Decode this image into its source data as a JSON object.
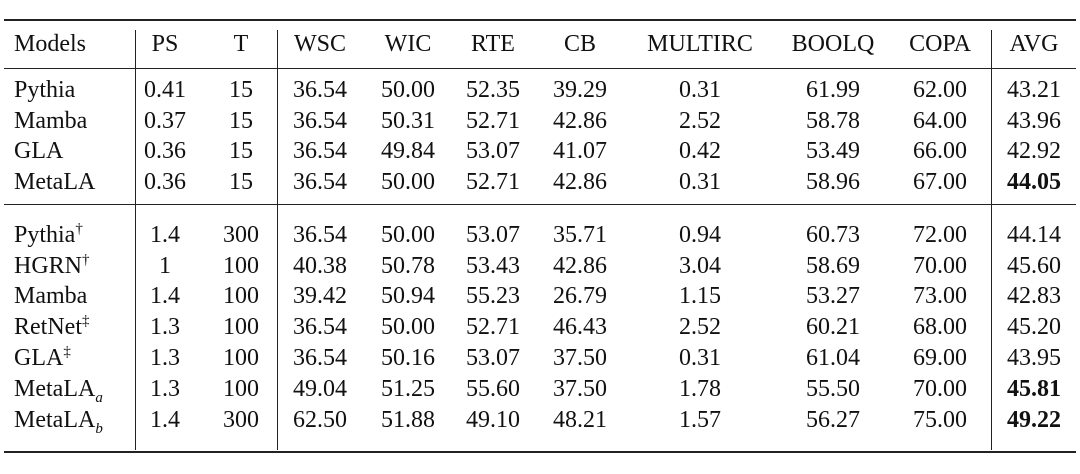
{
  "table": {
    "header": [
      "Models",
      "PS",
      "T",
      "WSC",
      "WIC",
      "RTE",
      "CB",
      "MULTIRC",
      "BOOLQ",
      "COPA",
      "AVG"
    ],
    "groups": [
      [
        {
          "model": "Pythia",
          "cells": [
            "0.41",
            "15",
            "36.54",
            "50.00",
            "52.35",
            "39.29",
            "0.31",
            "61.99",
            "62.00",
            "43.21"
          ]
        },
        {
          "model": "Mamba",
          "cells": [
            "0.37",
            "15",
            "36.54",
            "50.31",
            "52.71",
            "42.86",
            "2.52",
            "58.78",
            "64.00",
            "43.96"
          ]
        },
        {
          "model": "GLA",
          "cells": [
            "0.36",
            "15",
            "36.54",
            "49.84",
            "53.07",
            "41.07",
            "0.42",
            "53.49",
            "66.00",
            "42.92"
          ]
        },
        {
          "model": "MetaLA",
          "cells": [
            "0.36",
            "15",
            "36.54",
            "50.00",
            "52.71",
            "42.86",
            "0.31",
            "58.96",
            "67.00",
            "44.05"
          ],
          "bold_avg": true
        }
      ],
      [
        {
          "model": "Pythia",
          "sup": "†",
          "cells": [
            "1.4",
            "300",
            "36.54",
            "50.00",
            "53.07",
            "35.71",
            "0.94",
            "60.73",
            "72.00",
            "44.14"
          ]
        },
        {
          "model": "HGRN",
          "sup": "†",
          "cells": [
            "1",
            "100",
            "40.38",
            "50.78",
            "53.43",
            "42.86",
            "3.04",
            "58.69",
            "70.00",
            "45.60"
          ]
        },
        {
          "model": "Mamba",
          "cells": [
            "1.4",
            "100",
            "39.42",
            "50.94",
            "55.23",
            "26.79",
            "1.15",
            "53.27",
            "73.00",
            "42.83"
          ]
        },
        {
          "model": "RetNet",
          "sup": "‡",
          "cells": [
            "1.3",
            "100",
            "36.54",
            "50.00",
            "52.71",
            "46.43",
            "2.52",
            "60.21",
            "68.00",
            "45.20"
          ]
        },
        {
          "model": "GLA",
          "sup": "‡",
          "cells": [
            "1.3",
            "100",
            "36.54",
            "50.16",
            "53.07",
            "37.50",
            "0.31",
            "61.04",
            "69.00",
            "43.95"
          ]
        },
        {
          "model": "MetaLA",
          "sub": "a",
          "cells": [
            "1.3",
            "100",
            "49.04",
            "51.25",
            "55.60",
            "37.50",
            "1.78",
            "55.50",
            "70.00",
            "45.81"
          ],
          "bold_avg": true
        },
        {
          "model": "MetaLA",
          "sub": "b",
          "cells": [
            "1.4",
            "300",
            "62.50",
            "51.88",
            "49.10",
            "48.21",
            "1.57",
            "56.27",
            "75.00",
            "49.22"
          ],
          "bold_avg": true
        }
      ]
    ]
  }
}
